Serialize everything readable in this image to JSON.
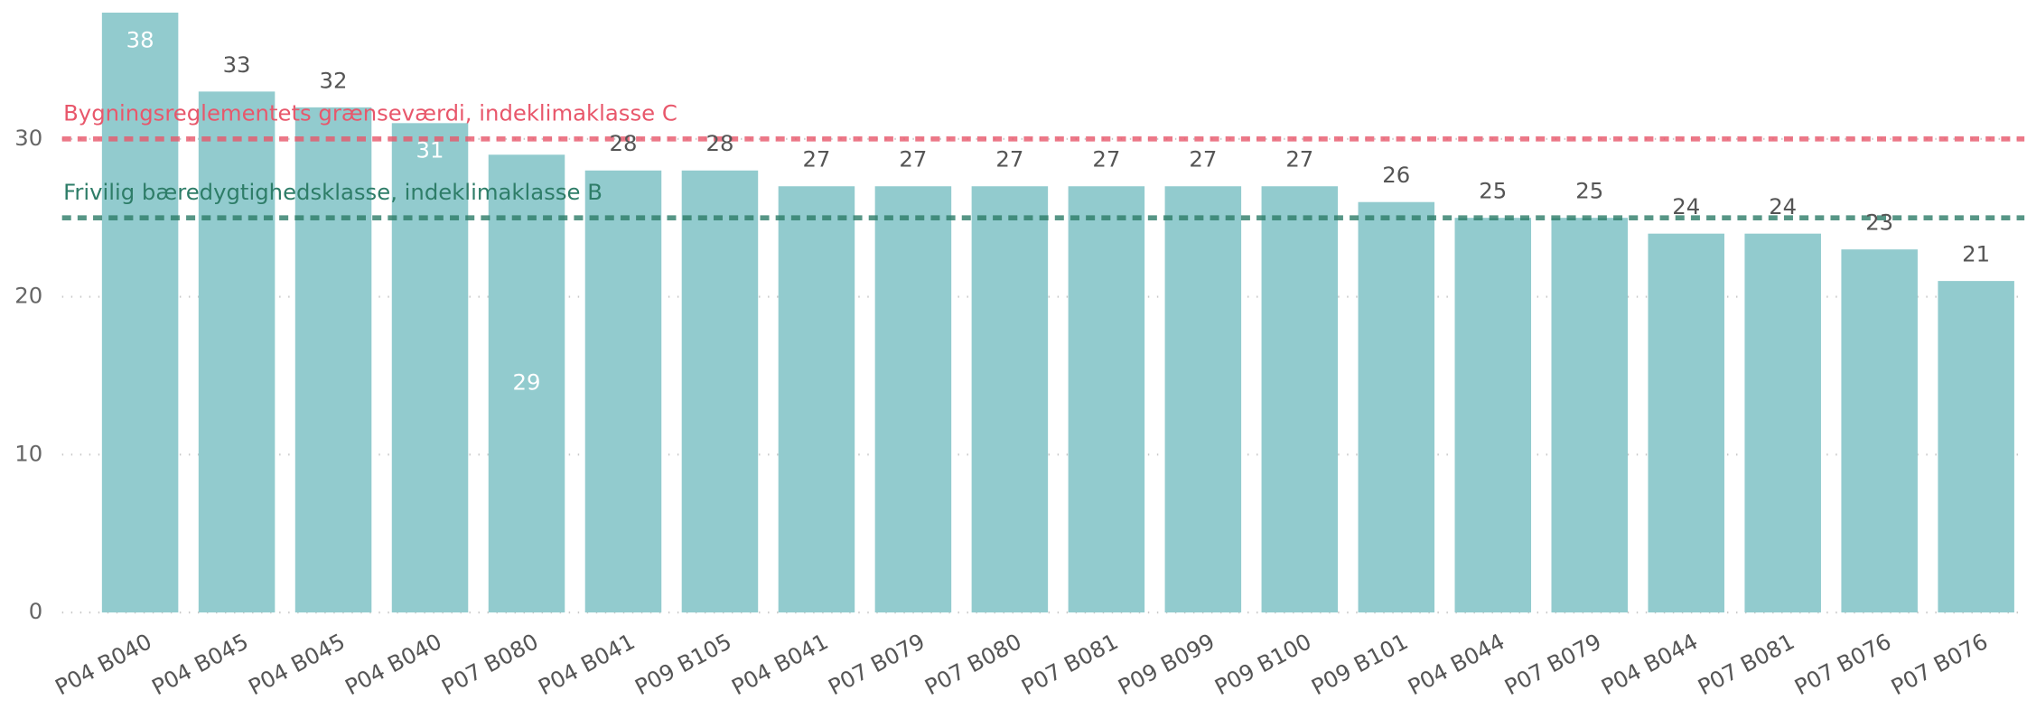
{
  "chart_data": {
    "type": "bar",
    "categories": [
      "P04 B040",
      "P04 B045",
      "P04 B045",
      "P04 B040",
      "P07 B080",
      "P04 B041",
      "P09 B105",
      "P04 B041",
      "P07 B079",
      "P07 B080",
      "P07 B081",
      "P09 B099",
      "P09 B100",
      "P09 B101",
      "P04 B044",
      "P07 B079",
      "P04 B044",
      "P07 B081",
      "P07 B076",
      "P07 B076"
    ],
    "values": [
      38,
      33,
      32,
      31,
      29,
      28,
      28,
      27,
      27,
      27,
      27,
      27,
      27,
      26,
      25,
      25,
      24,
      24,
      23,
      21
    ],
    "label_positions": [
      "inside-top",
      "outside",
      "outside",
      "inside-top",
      "inside-middle",
      "outside",
      "outside",
      "outside",
      "outside",
      "outside",
      "outside",
      "outside",
      "outside",
      "outside",
      "outside",
      "outside",
      "outside",
      "outside",
      "outside",
      "outside"
    ],
    "color": "#92cbce",
    "ylim": [
      0,
      38.8
    ],
    "yticks": [
      0,
      10,
      20,
      30
    ],
    "grid": true,
    "reference_lines": [
      {
        "value": 30,
        "label": "Bygningsreglementets grænseværdi, indeklimaklasse C",
        "color": "#e8576b"
      },
      {
        "value": 25,
        "label": "Frivilig bæredygtighedsklasse, indeklimaklasse B",
        "color": "#2e7d68"
      }
    ]
  }
}
